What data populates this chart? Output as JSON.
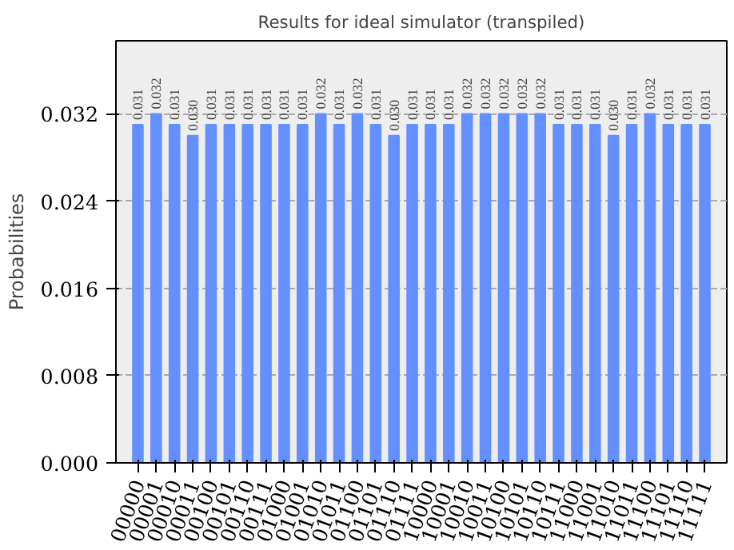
{
  "chart_data": {
    "type": "bar",
    "title": "Results for ideal simulator (transpiled)",
    "ylabel": "Probabilities",
    "categories": [
      "00000",
      "00001",
      "00010",
      "00011",
      "00100",
      "00101",
      "00110",
      "00111",
      "01000",
      "01001",
      "01010",
      "01011",
      "01100",
      "01101",
      "01110",
      "01111",
      "10000",
      "10001",
      "10010",
      "10011",
      "10100",
      "10101",
      "10110",
      "10111",
      "11000",
      "11001",
      "11010",
      "11011",
      "11100",
      "11101",
      "11110",
      "11111"
    ],
    "values": [
      0.031,
      0.032,
      0.031,
      0.03,
      0.031,
      0.031,
      0.031,
      0.031,
      0.031,
      0.031,
      0.032,
      0.031,
      0.032,
      0.031,
      0.03,
      0.031,
      0.031,
      0.031,
      0.032,
      0.032,
      0.032,
      0.032,
      0.032,
      0.031,
      0.031,
      0.031,
      0.03,
      0.031,
      0.032,
      0.031,
      0.031,
      0.031
    ],
    "color": "#648fff",
    "ylim": [
      0,
      0.0387
    ],
    "yticks": [
      {
        "value": 0,
        "label": "0.000"
      },
      {
        "value": 0.008,
        "label": "0.008"
      },
      {
        "value": 0.016,
        "label": "0.016"
      },
      {
        "value": 0.024,
        "label": "0.024"
      },
      {
        "value": 0.032,
        "label": "0.032"
      }
    ],
    "value_labels": [
      "0.031",
      "0.032",
      "0.031",
      "0.030",
      "0.031",
      "0.031",
      "0.031",
      "0.031",
      "0.031",
      "0.031",
      "0.032",
      "0.031",
      "0.032",
      "0.031",
      "0.030",
      "0.031",
      "0.031",
      "0.031",
      "0.032",
      "0.032",
      "0.032",
      "0.032",
      "0.032",
      "0.031",
      "0.031",
      "0.031",
      "0.030",
      "0.031",
      "0.032",
      "0.031",
      "0.031",
      "0.031"
    ],
    "grid": "y"
  }
}
